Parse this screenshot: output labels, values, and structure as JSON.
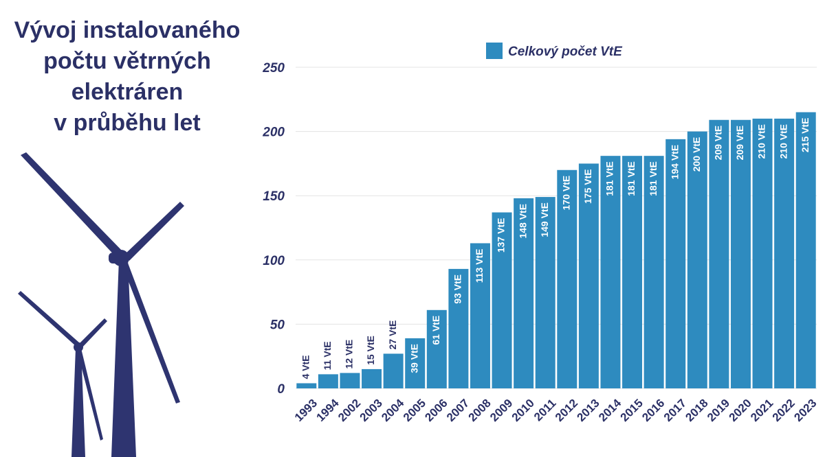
{
  "title_lines": [
    "Vývoj instalovaného",
    "počtu větrných",
    "elektráren",
    "v průběhu let"
  ],
  "colors": {
    "bar": "#2e8bbf",
    "title": "#2b3066",
    "turbine": "#2e3470",
    "grid": "#e3e3e3"
  },
  "chart_data": {
    "type": "bar",
    "title": "Vývoj instalovaného počtu větrných elektráren v průběhu let",
    "categories": [
      "1993",
      "1994",
      "2002",
      "2003",
      "2004",
      "2005",
      "2006",
      "2007",
      "2008",
      "2009",
      "2010",
      "2011",
      "2012",
      "2013",
      "2014",
      "2015",
      "2016",
      "2017",
      "2018",
      "2019",
      "2020",
      "2021",
      "2022",
      "2023"
    ],
    "series": [
      {
        "name": "Celkový počet VtE",
        "values": [
          4,
          11,
          12,
          15,
          27,
          39,
          61,
          93,
          113,
          137,
          148,
          149,
          170,
          175,
          181,
          181,
          181,
          194,
          200,
          209,
          209,
          210,
          210,
          215
        ]
      }
    ],
    "data_labels": [
      "4 VtE",
      "11 VtE",
      "12 VtE",
      "15 VtE",
      "27 VtE",
      "39 VtE",
      "61 VtE",
      "93 VtE",
      "113 VtE",
      "137 VtE",
      "148 VtE",
      "149 VtE",
      "170 VtE",
      "175 VtE",
      "181 VtE",
      "181 VtE",
      "181 VtE",
      "194 VtE",
      "200 VtE",
      "209 VtE",
      "209 VtE",
      "210 VtE",
      "210 VtE",
      "215 VtE"
    ],
    "yticks": [
      0,
      50,
      100,
      150,
      200,
      250
    ],
    "ylim": [
      0,
      250
    ],
    "grid": true,
    "legend_position": "top-center",
    "xlabel": "",
    "ylabel": ""
  }
}
